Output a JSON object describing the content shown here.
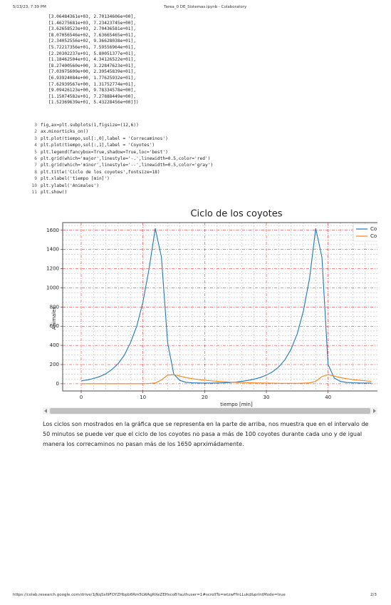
{
  "header": {
    "date": "5/13/23, 7:39 PM",
    "title": "Tarea_0 DE_Sistemas.ipynb - Colaboratory"
  },
  "output": {
    "lines": [
      "[3.06484361e+03, 2.70134606e+00],",
      "[1.46275681e+03, 7.23423745e+00],",
      "[3.62658523e+03, 2.70436581e+01],",
      "[8.07056546e+02, 7.63665465e+01],",
      "[2.34052556e+02, 9.36628038e+01],",
      "[5.72217356e+01, 7.59556964e+01],",
      "[2.20302237e+01, 5.80051377e+01],",
      "[1.18462504e+01, 4.34126522e+01],",
      "[8.27400560e+00, 3.22847623e+01],",
      "[7.03975609e+00, 2.39545839e+01],",
      "[6.93924084e+00, 1.77625932e+01],",
      "[7.62939567e+00, 1.31752774e+01],",
      "[9.09426123e+00, 9.78334578e+00],",
      "[1.15074582e+01, 7.27888449e+00],",
      "[1.52369639e+01, 5.43228456e+00]])"
    ]
  },
  "code": {
    "lines": [
      {
        "num": 3,
        "text": "fig,ax=plt.subplots(1,figsize=(12,6))"
      },
      {
        "num": 2,
        "text": "ax.minorticks_on()"
      },
      {
        "num": 3,
        "text": "plt.plot(tiempo,sol[:,0],label = 'Correcaminos')"
      },
      {
        "num": 4,
        "text": "plt.plot(tiempo,sol[:,1],label = 'Coyotes')"
      },
      {
        "num": 5,
        "text": "plt.legend(fancybox=True,shadow=True,loc='best')"
      },
      {
        "num": 6,
        "text": "plt.grid(which='major',linestyle='-.',linewidth=0.5,color='red')"
      },
      {
        "num": 7,
        "text": "plt.grid(which='minor',linestyle='--',linewidth=0.5,color='gray')"
      },
      {
        "num": 8,
        "text": "plt.title('Ciclo de los coyotes',fontsize=18)"
      },
      {
        "num": 9,
        "text": "plt.xlabel('tiempo [min]')"
      },
      {
        "num": 10,
        "text": "plt.ylabel('Animales')"
      },
      {
        "num": 11,
        "text": "plt.show()"
      }
    ]
  },
  "chart_data": {
    "type": "line",
    "title": "Ciclo de los coyotes",
    "x_label": "tiempo [min]",
    "y_label": "Animales",
    "x": [
      0,
      1,
      2,
      3,
      4,
      5,
      6,
      7,
      8,
      9,
      10,
      11,
      12,
      13,
      14,
      15,
      16,
      17,
      18,
      19,
      20,
      21,
      22,
      23,
      24,
      25,
      26,
      27,
      28,
      29,
      30,
      31,
      32,
      33,
      34,
      35,
      36,
      37,
      38,
      39,
      40,
      41,
      42,
      43,
      44,
      45,
      46,
      47
    ],
    "series": [
      {
        "name": "Co",
        "color": "#1f77b4",
        "values": [
          30,
          40,
          55,
          75,
          105,
          150,
          210,
          300,
          430,
          600,
          850,
          1200,
          1620,
          1320,
          430,
          100,
          35,
          15,
          10,
          8,
          7,
          7,
          8,
          10,
          13,
          18,
          25,
          35,
          48,
          65,
          90,
          125,
          175,
          250,
          360,
          520,
          760,
          1100,
          1620,
          1320,
          200,
          60,
          25,
          14,
          10,
          8,
          7,
          7
        ]
      },
      {
        "name": "Co",
        "color": "#ff7f0e",
        "values": [
          1,
          1,
          1,
          1,
          1,
          1,
          1,
          1,
          1,
          1,
          2,
          3,
          8,
          40,
          90,
          95,
          80,
          65,
          53,
          44,
          37,
          31,
          26,
          22,
          18,
          15,
          13,
          11,
          9,
          8,
          7,
          6,
          5,
          5,
          5,
          5,
          6,
          9,
          25,
          75,
          95,
          80,
          65,
          53,
          44,
          37,
          31,
          26
        ]
      }
    ],
    "xlim": [
      -3,
      48
    ],
    "ylim": [
      -75,
      1680
    ],
    "xticks": [
      0,
      10,
      20,
      30,
      40
    ],
    "yticks": [
      0,
      200,
      400,
      600,
      800,
      1000,
      1200,
      1400,
      1600
    ],
    "minor_xticks": [
      2,
      4,
      6,
      8,
      12,
      14,
      16,
      18,
      22,
      24,
      26,
      28,
      32,
      34,
      36,
      38,
      42,
      44,
      46
    ],
    "minor_yticks": [
      50,
      100,
      150,
      250,
      300,
      350,
      450,
      500,
      550,
      650,
      700,
      750,
      850,
      900,
      950,
      1050,
      1100,
      1150,
      1250,
      1300,
      1350,
      1450,
      1500,
      1550,
      1650
    ],
    "grid": true,
    "legend": "upper right"
  },
  "paragraph": "Los ciclos son mostrados en la gráfica que se representa en la parte de arriba, nos muestra que en el intervalo de 50 minutos se puede ver que el ciclo de los coyotes no pasa a más de 100 coyotes durante cada uno y de igual manera los correcaminos no pasan más de los 1650 aprximádamente.",
  "footer": {
    "url": "https://colab.research.google.com/drive/1jNqSsI9FOYZHbpb6Rm5LWAgRXeZEHscoB?authuser=1#scrollTo=wtzwFfnLLukd&printMode=true",
    "page": "2/3"
  }
}
